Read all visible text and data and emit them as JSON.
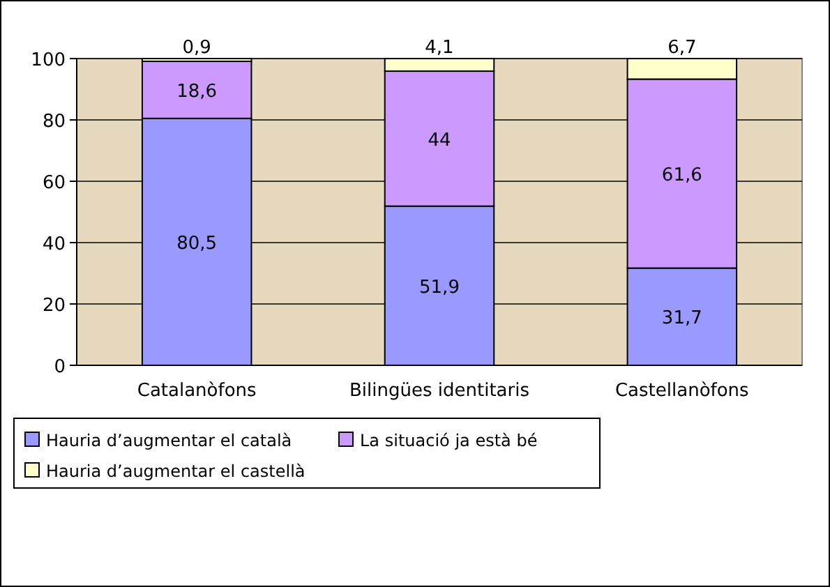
{
  "chart_data": {
    "type": "bar",
    "stacked": true,
    "categories": [
      "Catalanòfons",
      "Bilingües identitaris",
      "Castellanòfons"
    ],
    "series": [
      {
        "name": "Hauria d’augmentar el català",
        "color": "#9999ff",
        "values": [
          80.5,
          51.9,
          31.7
        ],
        "value_labels": [
          "80,5",
          "51,9",
          "31,7"
        ]
      },
      {
        "name": "La situació ja està bé",
        "color": "#cc99ff",
        "values": [
          18.6,
          44,
          61.6
        ],
        "value_labels": [
          "18,6",
          "44",
          "61,6"
        ]
      },
      {
        "name": "Hauria d’augmentar el castellà",
        "color": "#ffffcc",
        "values": [
          0.9,
          4.1,
          6.7
        ],
        "value_labels": [
          "0,9",
          "4,1",
          "6,7"
        ]
      }
    ],
    "ylim": [
      0,
      100
    ],
    "yticks": [
      0,
      20,
      40,
      60,
      80,
      100
    ],
    "grid": "y",
    "legend": "bottom"
  }
}
